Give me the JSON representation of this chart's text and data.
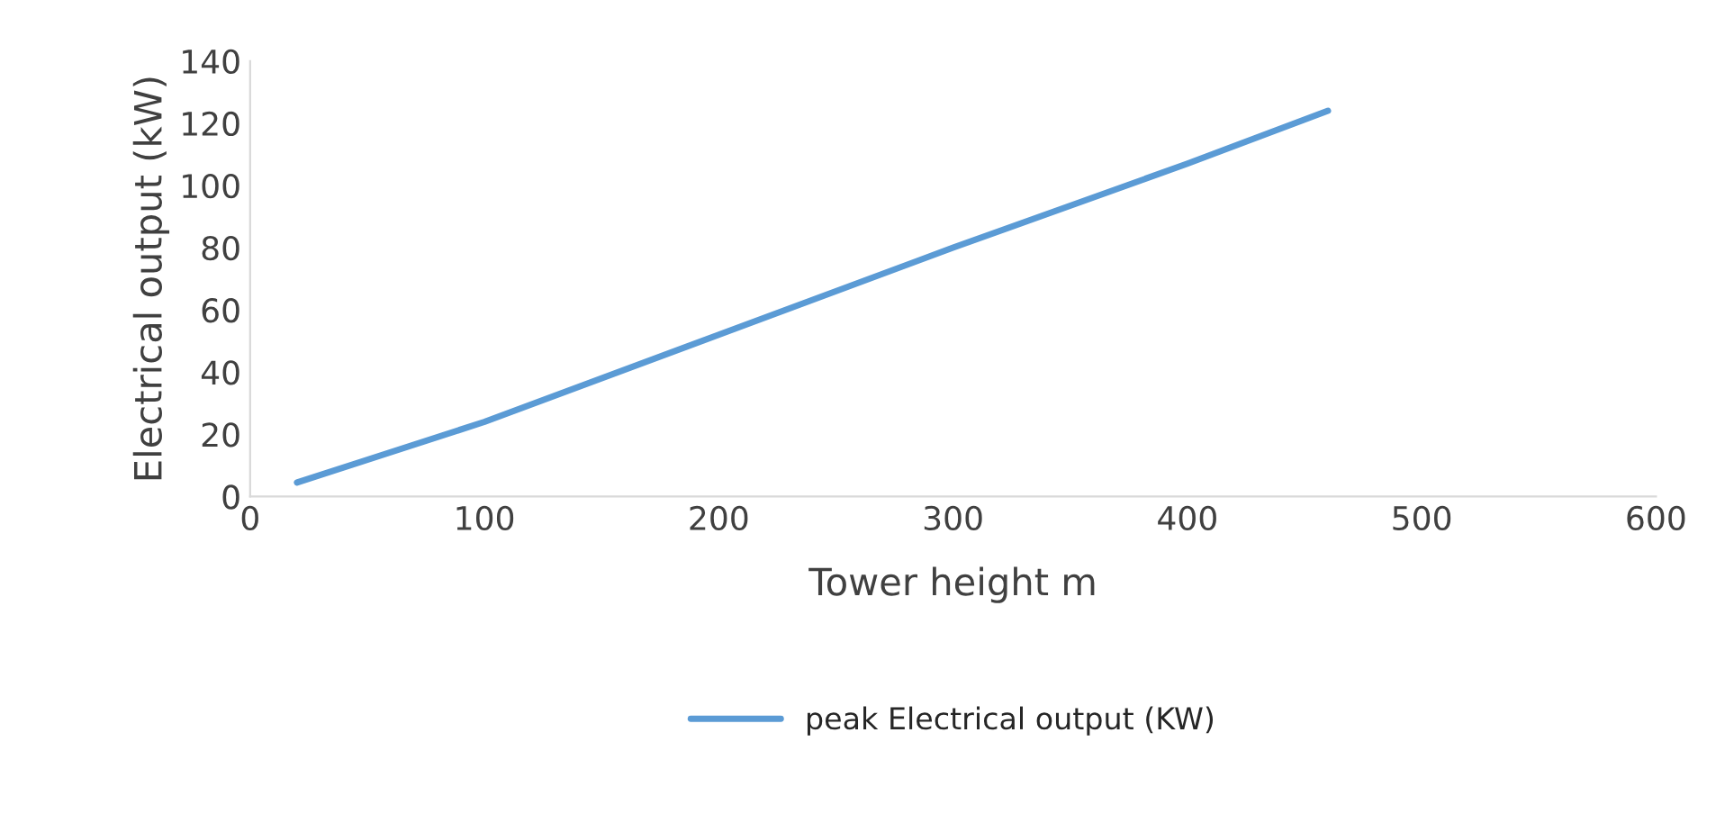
{
  "chart_data": {
    "type": "line",
    "xlabel": "Tower height m",
    "ylabel": "Electrical output (kW)",
    "x": [
      20,
      100,
      200,
      300,
      400,
      460
    ],
    "series": [
      {
        "name": "peak Electrical output (KW)",
        "color": "#5b9bd5",
        "values": [
          4.5,
          24,
          52,
          80,
          107,
          124
        ]
      }
    ],
    "xlim": [
      0,
      600
    ],
    "xticks": [
      0,
      100,
      200,
      300,
      400,
      500,
      600
    ],
    "ylim": [
      0,
      140
    ],
    "yticks": [
      0,
      20,
      40,
      60,
      80,
      100,
      120,
      140
    ],
    "grid": false,
    "legend": "bottom",
    "marker": "none",
    "line_style": "solid"
  }
}
